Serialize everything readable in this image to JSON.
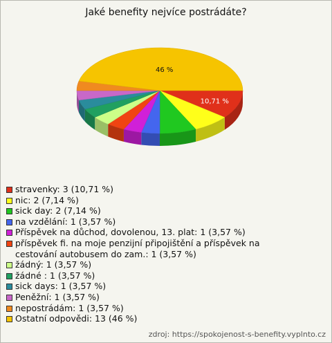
{
  "chart_data": {
    "type": "pie3d",
    "title": "Jaké benefity nejvíce postrádáte?",
    "categories": [
      "stravenky",
      "nic",
      "sick day",
      "na vzdělání",
      "Příspěvek na důchod, dovolenou, 13. plat",
      "příspěvek fi. na moje penzijní připojištění a příspěvek na cestování autobusem do zam.",
      "žádný",
      "žádné ",
      "sick days",
      "Peněžní",
      "nepostrádám",
      "Ostatní odpovědi"
    ],
    "values": [
      3,
      2,
      2,
      1,
      1,
      1,
      1,
      1,
      1,
      1,
      1,
      13
    ],
    "value_labels": [
      "10,71 %",
      null,
      null,
      null,
      null,
      null,
      null,
      null,
      null,
      null,
      null,
      "46 %"
    ],
    "legend_labels": [
      "stravenky: 3 (10,71 %)",
      "nic: 2 (7,14 %)",
      "sick day: 2 (7,14 %)",
      "na vzdělání: 1 (3,57 %)",
      "Příspěvek na důchod, dovolenou, 13. plat: 1 (3,57 %)",
      "příspěvek fi. na moje penzijní připojištění a příspěvek na cestování autobusem do zam.: 1 (3,57 %)",
      "žádný: 1 (3,57 %)",
      "žádné : 1 (3,57 %)",
      "sick days: 1 (3,57 %)",
      "Peněžní: 1 (3,57 %)",
      "nepostrádám: 1 (3,57 %)",
      "Ostatní odpovědi: 13 (46 %)"
    ],
    "colors": [
      "#e0301a",
      "#ffff1a",
      "#20c820",
      "#4466ee",
      "#d020d8",
      "#f04412",
      "#ccff88",
      "#20a060",
      "#2a8c9c",
      "#c868c8",
      "#f08a20",
      "#f6c400"
    ],
    "source": "zdroj: https://spokojenost-s-benefity.vyplnto.cz"
  }
}
